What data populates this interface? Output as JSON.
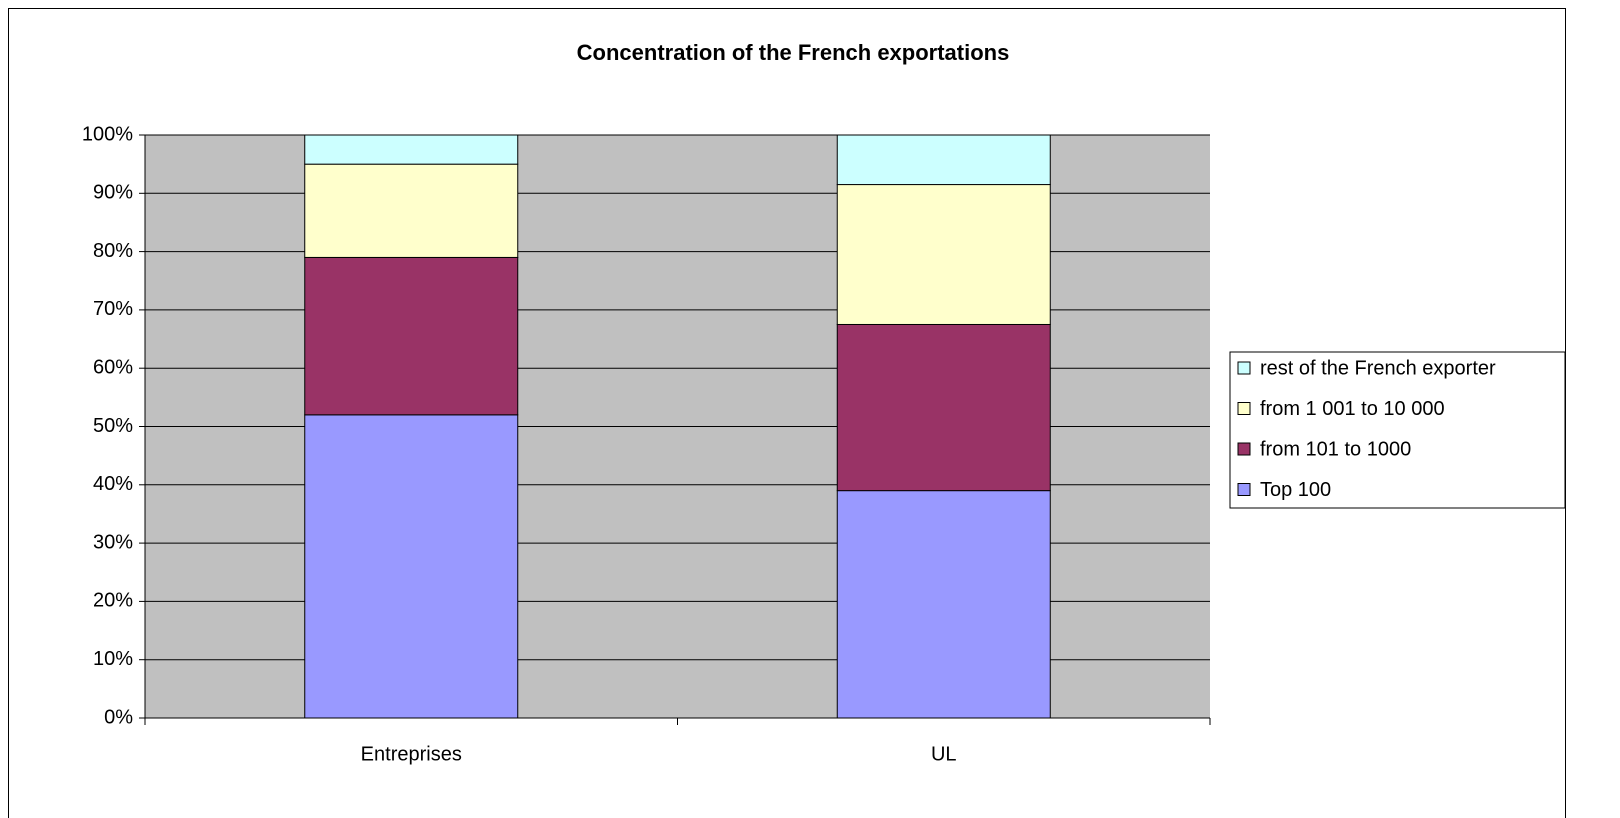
{
  "chart_data": {
    "type": "bar",
    "stacked": true,
    "title": "Concentration of the French exportations",
    "categories": [
      "Entreprises",
      "UL"
    ],
    "series": [
      {
        "name": "Top 100",
        "color": "#9999ff",
        "values": [
          52,
          39
        ]
      },
      {
        "name": "from 101 to 1000",
        "color": "#993366",
        "values": [
          27,
          28.5
        ]
      },
      {
        "name": "from 1 001 to 10 000",
        "color": "#ffffcc",
        "values": [
          16,
          24
        ]
      },
      {
        "name": "rest of the French exporter",
        "color": "#ccffff",
        "values": [
          5,
          8.5
        ]
      }
    ],
    "ylim": [
      0,
      100
    ],
    "yticks": [
      {
        "value": 0,
        "label": "0%"
      },
      {
        "value": 10,
        "label": "10%"
      },
      {
        "value": 20,
        "label": "20%"
      },
      {
        "value": 30,
        "label": "30%"
      },
      {
        "value": 40,
        "label": "40%"
      },
      {
        "value": 50,
        "label": "50%"
      },
      {
        "value": 60,
        "label": "60%"
      },
      {
        "value": 70,
        "label": "70%"
      },
      {
        "value": 80,
        "label": "80%"
      },
      {
        "value": 90,
        "label": "90%"
      },
      {
        "value": 100,
        "label": "100%"
      }
    ],
    "grid": true,
    "legend": "right",
    "plot_background": "#c0c0c0"
  }
}
